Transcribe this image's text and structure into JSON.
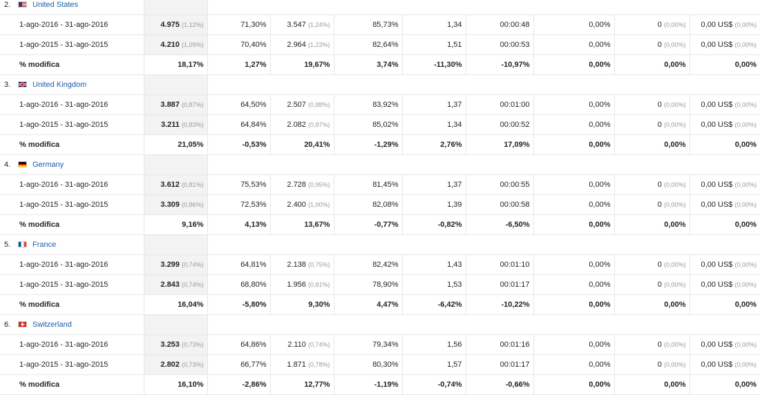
{
  "countries": [
    {
      "index": "2.",
      "name": "United States",
      "flag": "flag-us",
      "rows": [
        {
          "label": "1-ago-2016 - 31-ago-2016",
          "sessions": "4.975",
          "sessions_pct": "(1,12%)",
          "new_pct": "71,30%",
          "new_users": "3.547",
          "new_users_pct": "(1,24%)",
          "bounce": "85,73%",
          "pages": "1,34",
          "duration": "00:00:48",
          "conv_rate": "0,00%",
          "goals": "0",
          "goals_pct": "(0,00%)",
          "value": "0,00 US$",
          "value_pct": "(0,00%)"
        },
        {
          "label": "1-ago-2015 - 31-ago-2015",
          "sessions": "4.210",
          "sessions_pct": "(1,09%)",
          "new_pct": "70,40%",
          "new_users": "2.964",
          "new_users_pct": "(1,23%)",
          "bounce": "82,64%",
          "pages": "1,51",
          "duration": "00:00:53",
          "conv_rate": "0,00%",
          "goals": "0",
          "goals_pct": "(0,00%)",
          "value": "0,00 US$",
          "value_pct": "(0,00%)"
        }
      ],
      "change": {
        "label": "% modifica",
        "sessions": "18,17%",
        "new_pct": "1,27%",
        "new_users": "19,67%",
        "bounce": "3,74%",
        "pages": "-11,30%",
        "duration": "-10,97%",
        "conv_rate": "0,00%",
        "goals": "0,00%",
        "value": "0,00%"
      }
    },
    {
      "index": "3.",
      "name": "United Kingdom",
      "flag": "flag-uk",
      "rows": [
        {
          "label": "1-ago-2016 - 31-ago-2016",
          "sessions": "3.887",
          "sessions_pct": "(0,87%)",
          "new_pct": "64,50%",
          "new_users": "2.507",
          "new_users_pct": "(0,88%)",
          "bounce": "83,92%",
          "pages": "1,37",
          "duration": "00:01:00",
          "conv_rate": "0,00%",
          "goals": "0",
          "goals_pct": "(0,00%)",
          "value": "0,00 US$",
          "value_pct": "(0,00%)"
        },
        {
          "label": "1-ago-2015 - 31-ago-2015",
          "sessions": "3.211",
          "sessions_pct": "(0,83%)",
          "new_pct": "64,84%",
          "new_users": "2.082",
          "new_users_pct": "(0,87%)",
          "bounce": "85,02%",
          "pages": "1,34",
          "duration": "00:00:52",
          "conv_rate": "0,00%",
          "goals": "0",
          "goals_pct": "(0,00%)",
          "value": "0,00 US$",
          "value_pct": "(0,00%)"
        }
      ],
      "change": {
        "label": "% modifica",
        "sessions": "21,05%",
        "new_pct": "-0,53%",
        "new_users": "20,41%",
        "bounce": "-1,29%",
        "pages": "2,76%",
        "duration": "17,09%",
        "conv_rate": "0,00%",
        "goals": "0,00%",
        "value": "0,00%"
      }
    },
    {
      "index": "4.",
      "name": "Germany",
      "flag": "flag-de",
      "rows": [
        {
          "label": "1-ago-2016 - 31-ago-2016",
          "sessions": "3.612",
          "sessions_pct": "(0,81%)",
          "new_pct": "75,53%",
          "new_users": "2.728",
          "new_users_pct": "(0,95%)",
          "bounce": "81,45%",
          "pages": "1,37",
          "duration": "00:00:55",
          "conv_rate": "0,00%",
          "goals": "0",
          "goals_pct": "(0,00%)",
          "value": "0,00 US$",
          "value_pct": "(0,00%)"
        },
        {
          "label": "1-ago-2015 - 31-ago-2015",
          "sessions": "3.309",
          "sessions_pct": "(0,86%)",
          "new_pct": "72,53%",
          "new_users": "2.400",
          "new_users_pct": "(1,00%)",
          "bounce": "82,08%",
          "pages": "1,39",
          "duration": "00:00:58",
          "conv_rate": "0,00%",
          "goals": "0",
          "goals_pct": "(0,00%)",
          "value": "0,00 US$",
          "value_pct": "(0,00%)"
        }
      ],
      "change": {
        "label": "% modifica",
        "sessions": "9,16%",
        "new_pct": "4,13%",
        "new_users": "13,67%",
        "bounce": "-0,77%",
        "pages": "-0,82%",
        "duration": "-6,50%",
        "conv_rate": "0,00%",
        "goals": "0,00%",
        "value": "0,00%"
      }
    },
    {
      "index": "5.",
      "name": "France",
      "flag": "flag-fr",
      "rows": [
        {
          "label": "1-ago-2016 - 31-ago-2016",
          "sessions": "3.299",
          "sessions_pct": "(0,74%)",
          "new_pct": "64,81%",
          "new_users": "2.138",
          "new_users_pct": "(0,75%)",
          "bounce": "82,42%",
          "pages": "1,43",
          "duration": "00:01:10",
          "conv_rate": "0,00%",
          "goals": "0",
          "goals_pct": "(0,00%)",
          "value": "0,00 US$",
          "value_pct": "(0,00%)"
        },
        {
          "label": "1-ago-2015 - 31-ago-2015",
          "sessions": "2.843",
          "sessions_pct": "(0,74%)",
          "new_pct": "68,80%",
          "new_users": "1.956",
          "new_users_pct": "(0,81%)",
          "bounce": "78,90%",
          "pages": "1,53",
          "duration": "00:01:17",
          "conv_rate": "0,00%",
          "goals": "0",
          "goals_pct": "(0,00%)",
          "value": "0,00 US$",
          "value_pct": "(0,00%)"
        }
      ],
      "change": {
        "label": "% modifica",
        "sessions": "16,04%",
        "new_pct": "-5,80%",
        "new_users": "9,30%",
        "bounce": "4,47%",
        "pages": "-6,42%",
        "duration": "-10,22%",
        "conv_rate": "0,00%",
        "goals": "0,00%",
        "value": "0,00%"
      }
    },
    {
      "index": "6.",
      "name": "Switzerland",
      "flag": "flag-ch",
      "rows": [
        {
          "label": "1-ago-2016 - 31-ago-2016",
          "sessions": "3.253",
          "sessions_pct": "(0,73%)",
          "new_pct": "64,86%",
          "new_users": "2.110",
          "new_users_pct": "(0,74%)",
          "bounce": "79,34%",
          "pages": "1,56",
          "duration": "00:01:16",
          "conv_rate": "0,00%",
          "goals": "0",
          "goals_pct": "(0,00%)",
          "value": "0,00 US$",
          "value_pct": "(0,00%)"
        },
        {
          "label": "1-ago-2015 - 31-ago-2015",
          "sessions": "2.802",
          "sessions_pct": "(0,73%)",
          "new_pct": "66,77%",
          "new_users": "1.871",
          "new_users_pct": "(0,78%)",
          "bounce": "80,30%",
          "pages": "1,57",
          "duration": "00:01:17",
          "conv_rate": "0,00%",
          "goals": "0",
          "goals_pct": "(0,00%)",
          "value": "0,00 US$",
          "value_pct": "(0,00%)"
        }
      ],
      "change": {
        "label": "% modifica",
        "sessions": "16,10%",
        "new_pct": "-2,86%",
        "new_users": "12,77%",
        "bounce": "-1,19%",
        "pages": "-0,74%",
        "duration": "-0,66%",
        "conv_rate": "0,00%",
        "goals": "0,00%",
        "value": "0,00%"
      }
    }
  ]
}
